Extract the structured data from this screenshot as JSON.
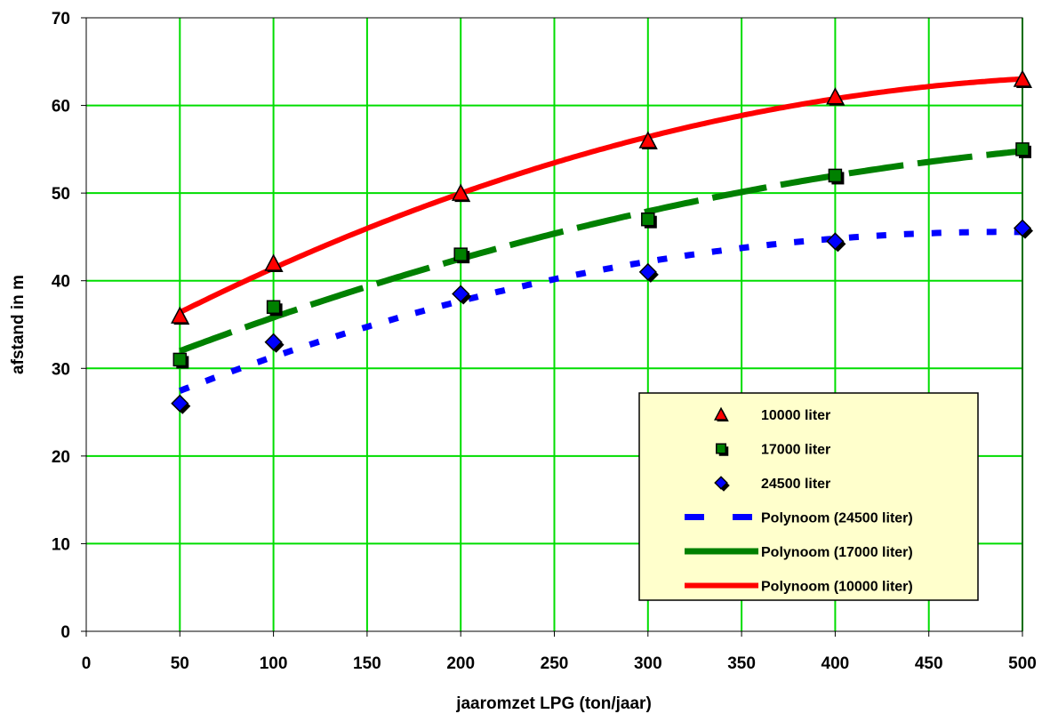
{
  "chart_data": {
    "type": "scatter",
    "xlabel": "jaaromzet LPG (ton/jaar)",
    "ylabel": "afstand in m",
    "xlim": [
      0,
      500
    ],
    "ylim": [
      0,
      70
    ],
    "xticks": [
      0,
      50,
      100,
      150,
      200,
      250,
      300,
      350,
      400,
      450,
      500
    ],
    "yticks": [
      0,
      10,
      20,
      30,
      40,
      50,
      60,
      70
    ],
    "grid": true,
    "grid_color": "#00dd00",
    "plot_background": "#ffffff",
    "legend_position": "bottom-right",
    "legend_background": "#ffffcc",
    "series": [
      {
        "name": "10000 liter",
        "kind": "markers",
        "marker": "triangle",
        "color": "#ff0000",
        "x": [
          50,
          100,
          200,
          300,
          400,
          500
        ],
        "y": [
          36,
          42,
          50,
          56,
          61,
          63
        ]
      },
      {
        "name": "17000 liter",
        "kind": "markers",
        "marker": "square",
        "color": "#008000",
        "x": [
          50,
          100,
          200,
          300,
          400,
          500
        ],
        "y": [
          31,
          37,
          43,
          47,
          52,
          55
        ]
      },
      {
        "name": "24500 liter",
        "kind": "markers",
        "marker": "diamond",
        "color": "#0000ff",
        "x": [
          50,
          100,
          200,
          300,
          400,
          500
        ],
        "y": [
          26,
          33,
          38.5,
          41,
          44.5,
          46
        ]
      },
      {
        "name": "Polynoom (24500 liter)",
        "kind": "trendline",
        "style": "dashed",
        "color": "#0000ff",
        "x": [
          50,
          500
        ],
        "y_fit": [
          27.5,
          46
        ]
      },
      {
        "name": "Polynoom (17000 liter)",
        "kind": "trendline",
        "style": "long-dash",
        "color": "#008000",
        "x": [
          50,
          500
        ],
        "y_fit": [
          32,
          55
        ]
      },
      {
        "name": "Polynoom (10000 liter)",
        "kind": "trendline",
        "style": "solid",
        "color": "#ff0000",
        "x": [
          50,
          500
        ],
        "y_fit": [
          36.5,
          63
        ]
      }
    ]
  }
}
